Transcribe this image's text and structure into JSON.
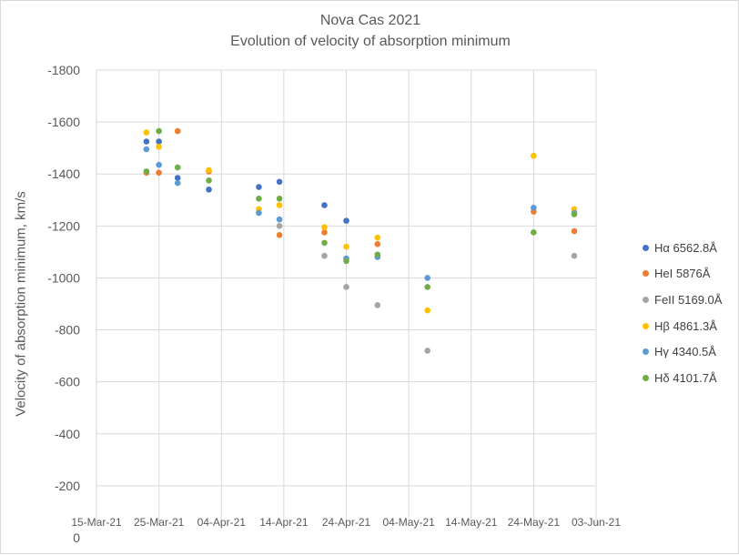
{
  "chart_data": {
    "type": "scatter",
    "title": "Nova Cas 2021",
    "subtitle": "Evolution of velocity of absorption minimum",
    "xlabel": "",
    "ylabel": "Velocity of absorption minimum, km/s",
    "x_ticks": [
      "15-Mar-21",
      "25-Mar-21",
      "04-Apr-21",
      "14-Apr-21",
      "24-Apr-21",
      "04-May-21",
      "14-May-21",
      "24-May-21",
      "03-Jun-21"
    ],
    "x_tick_days": [
      0,
      10,
      20,
      30,
      40,
      50,
      60,
      70,
      80
    ],
    "xlim_days": [
      0,
      80
    ],
    "x_origin": "15-Mar-21",
    "y_ticks": [
      0,
      -200,
      -400,
      -600,
      -800,
      -1000,
      -1200,
      -1400,
      -1600,
      -1800
    ],
    "y_tick_labels": [
      "0",
      "-200",
      "-400",
      "-600",
      "-800",
      "-1000",
      "-1200",
      "-1400",
      "-1600",
      "-1800"
    ],
    "ylim": [
      0,
      -1800
    ],
    "y_reversed": true,
    "grid": true,
    "legend_position": "right",
    "series": [
      {
        "name": "Hα 6562.8Å",
        "color": "#4472C4",
        "x": [
          8,
          10,
          13,
          18,
          26,
          29.3,
          36.5,
          40
        ],
        "y": [
          -1525,
          -1525,
          -1385,
          -1340,
          -1350,
          -1370,
          -1280,
          -1220
        ]
      },
      {
        "name": "HeI 5876Å",
        "color": "#ED7D31",
        "x": [
          8,
          10,
          13,
          18,
          29.3,
          36.5,
          45,
          70,
          76.5
        ],
        "y": [
          -1405,
          -1405,
          -1565,
          -1410,
          -1165,
          -1175,
          -1130,
          -1255,
          -1180
        ]
      },
      {
        "name": "FeII 5169.0Å",
        "color": "#A5A5A5",
        "x": [
          29.3,
          36.5,
          40,
          45,
          53,
          76.5
        ],
        "y": [
          -1200,
          -1085,
          -965,
          -895,
          -720,
          -1085
        ]
      },
      {
        "name": "Hβ 4861.3Å",
        "color": "#FFC000",
        "x": [
          8,
          10,
          18,
          26,
          29.3,
          36.5,
          40,
          45,
          53,
          70,
          76.5
        ],
        "y": [
          -1560,
          -1505,
          -1415,
          -1265,
          -1280,
          -1195,
          -1120,
          -1155,
          -875,
          -1470,
          -1265
        ]
      },
      {
        "name": "Hγ 4340.5Å",
        "color": "#5B9BD5",
        "x": [
          8,
          10,
          13,
          26,
          29.3,
          40,
          45,
          53,
          70,
          76.5
        ],
        "y": [
          -1495,
          -1435,
          -1365,
          -1250,
          -1225,
          -1075,
          -1080,
          -1000,
          -1270,
          -1250
        ]
      },
      {
        "name": "Hδ 4101.7Å",
        "color": "#70AD47",
        "x": [
          8,
          10,
          13,
          18,
          26,
          29.3,
          36.5,
          40,
          45,
          53,
          70,
          76.5
        ],
        "y": [
          -1410,
          -1565,
          -1425,
          -1375,
          -1305,
          -1305,
          -1135,
          -1065,
          -1090,
          -965,
          -1175,
          -1245
        ]
      }
    ]
  }
}
